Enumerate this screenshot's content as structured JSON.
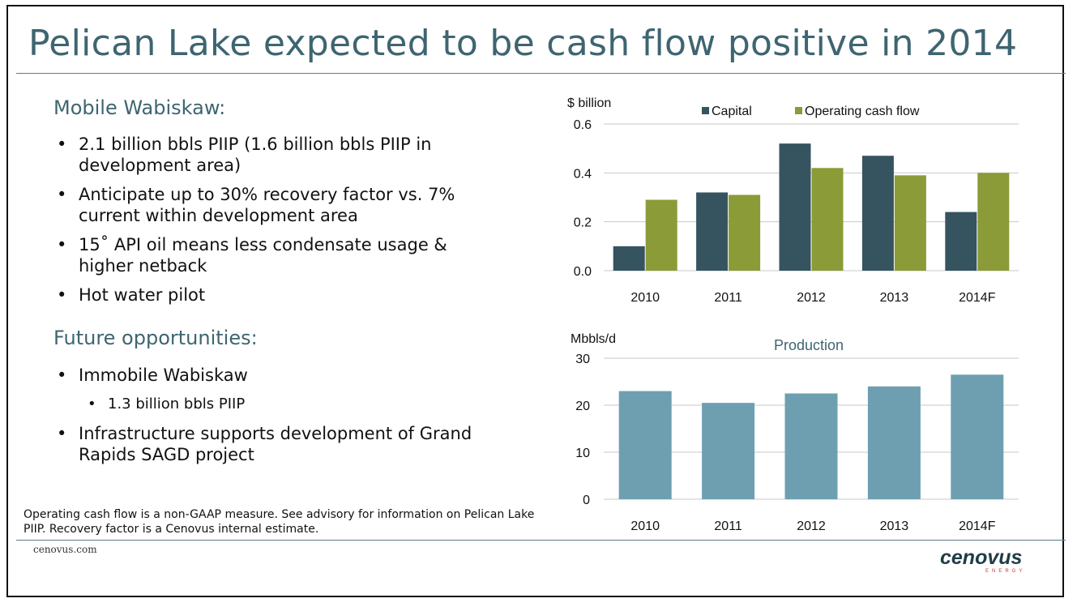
{
  "title": "Pelican Lake expected to be cash flow positive in 2014",
  "sections": [
    {
      "heading": "Mobile Wabiskaw:",
      "bullets": [
        "2.1 billion bbls PIIP (1.6 billion bbls PIIP in development area)",
        "Anticipate up to 30% recovery factor vs. 7% current within development area",
        "15˚ API oil means less condensate usage & higher netback",
        "Hot water pilot"
      ]
    },
    {
      "heading": "Future opportunities:",
      "bullets": [
        "Immobile Wabiskaw",
        "Infrastructure supports development of Grand Rapids SAGD project"
      ],
      "sub_bullets": [
        "1.3 billion bbls PIIP"
      ]
    }
  ],
  "footnote": "Operating cash flow is a non-GAAP measure. See advisory for information on Pelican Lake PIIP. Recovery factor is a Cenovus internal estimate.",
  "site": "cenovus.com",
  "logo": {
    "text": "cenovus",
    "subtext": "ENERGY"
  },
  "colors": {
    "title": "#3e6571",
    "capital": "#35545f",
    "ocf": "#8a9b38",
    "production": "#6e9fb1",
    "logo": "#1f3d46",
    "logo_accent": "#c0392b"
  },
  "chart_data": [
    {
      "type": "bar",
      "title": "",
      "ylabel": "$ billion",
      "categories": [
        "2010",
        "2011",
        "2012",
        "2013",
        "2014F"
      ],
      "series": [
        {
          "name": "Capital",
          "values": [
            0.1,
            0.32,
            0.52,
            0.47,
            0.24
          ]
        },
        {
          "name": "Operating cash flow",
          "values": [
            0.29,
            0.31,
            0.42,
            0.39,
            0.4
          ]
        }
      ],
      "yticks": [
        "0.0",
        "0.2",
        "0.4",
        "0.6"
      ],
      "ylim": [
        0,
        0.6
      ],
      "grid": true,
      "legend": "top"
    },
    {
      "type": "bar",
      "title": "Production",
      "ylabel": "Mbbls/d",
      "categories": [
        "2010",
        "2011",
        "2012",
        "2013",
        "2014F"
      ],
      "values": [
        23,
        20.5,
        22.5,
        24,
        26.5
      ],
      "yticks": [
        "0",
        "10",
        "20",
        "30"
      ],
      "ylim": [
        0,
        30
      ],
      "grid": true
    }
  ]
}
